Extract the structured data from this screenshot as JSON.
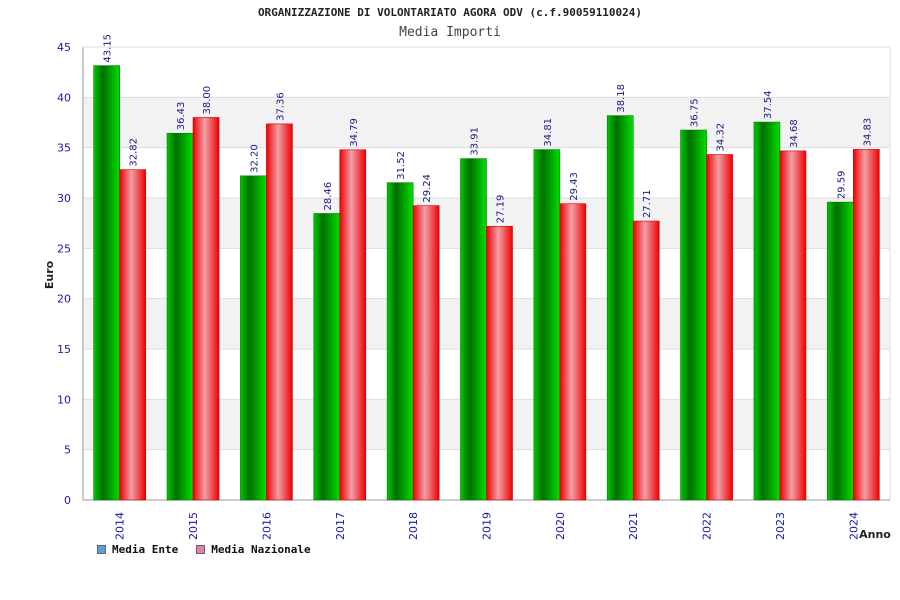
{
  "chart_data": {
    "type": "bar",
    "title": "ORGANIZZAZIONE DI VOLONTARIATO AGORA ODV (c.f.90059110024)",
    "subtitle": "Media Importi",
    "xlabel": "Anno",
    "ylabel": "Euro",
    "ylim": [
      0,
      45
    ],
    "yticks": [
      0,
      5,
      10,
      15,
      20,
      25,
      30,
      35,
      40,
      45
    ],
    "grid": true,
    "legend_position": "bottom-left",
    "categories": [
      "2014",
      "2015",
      "2016",
      "2017",
      "2018",
      "2019",
      "2020",
      "2021",
      "2022",
      "2023",
      "2024"
    ],
    "series": [
      {
        "name": "Media Ente",
        "color": "#00a000",
        "legend_color": "#5a9ee6",
        "values": [
          43.15,
          36.43,
          32.2,
          28.46,
          31.52,
          33.91,
          34.81,
          38.18,
          36.75,
          37.54,
          29.59
        ],
        "labels": [
          "43.15",
          "36.43",
          "32.20",
          "28.46",
          "31.52",
          "33.91",
          "34.81",
          "38.18",
          "36.75",
          "37.54",
          "29.59"
        ]
      },
      {
        "name": "Media Nazionale",
        "color": "#ee1111",
        "legend_color": "#e080b0",
        "values": [
          32.82,
          38.0,
          37.36,
          34.79,
          29.24,
          27.19,
          29.43,
          27.71,
          34.32,
          34.68,
          34.83
        ],
        "labels": [
          "32.82",
          "38.00",
          "37.36",
          "34.79",
          "29.24",
          "27.19",
          "29.43",
          "27.71",
          "34.32",
          "34.68",
          "34.83"
        ]
      }
    ]
  }
}
